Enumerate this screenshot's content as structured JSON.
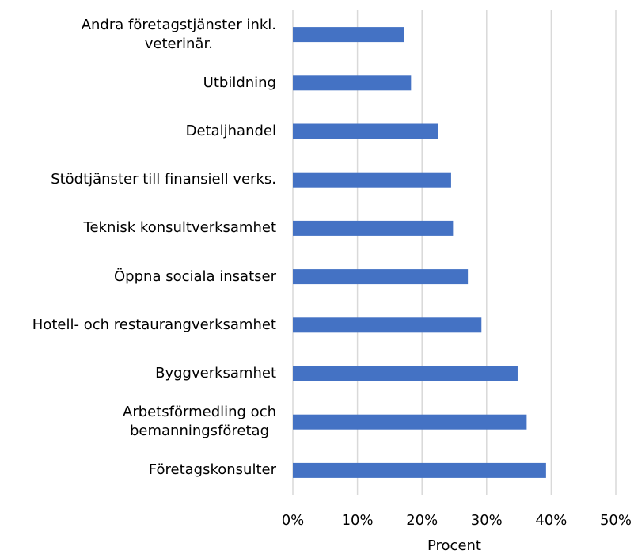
{
  "chart_data": {
    "type": "bar",
    "orientation": "horizontal",
    "categories": [
      "Andra företagstjänster inkl.\nveterinär.",
      "Utbildning",
      "Detaljhandel",
      "Stödtjänster till finansiell verks.",
      "Teknisk konsultverksamhet",
      "Öppna sociala insatser",
      "Hotell- och restaurangverksamhet",
      "Byggverksamhet",
      "Arbetsförmedling och\nbemanningsföretag",
      "Företagskonsulter"
    ],
    "values": [
      17.2,
      18.3,
      22.5,
      24.5,
      24.8,
      27.1,
      29.2,
      34.8,
      36.2,
      39.2
    ],
    "color": "#4472c4",
    "xlim": [
      0,
      50
    ],
    "xticks": [
      {
        "value": 0,
        "label": "0%"
      },
      {
        "value": 10,
        "label": "10%"
      },
      {
        "value": 20,
        "label": "20%"
      },
      {
        "value": 30,
        "label": "30%"
      },
      {
        "value": 40,
        "label": "40%"
      },
      {
        "value": 50,
        "label": "50%"
      }
    ],
    "xlabel": "Procent",
    "grid": true
  }
}
